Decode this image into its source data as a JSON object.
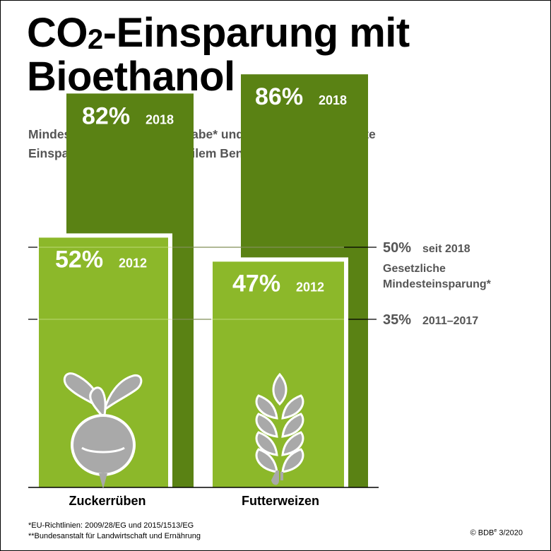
{
  "title_line1_a": "CO",
  "title_line1_sub": "2",
  "title_line1_b": "-Einsparung mit",
  "title_line2": "Bioethanol",
  "subtitle_line1": "Mindestwerte nach EU-Vorgabe* und amtlich** festgestellte",
  "subtitle_line2": "Einsparung gegenüber fossilem Benzin",
  "colors": {
    "dark_green": "#5a8214",
    "light_green": "#8cb82a",
    "icon_grey": "#a9a9a9"
  },
  "chart_data": {
    "type": "bar",
    "categories": [
      "Zuckerrüben",
      "Futterweizen"
    ],
    "series": [
      {
        "values": [
          82,
          86
        ],
        "labels": [
          "82%",
          "86%"
        ],
        "year": "2018"
      },
      {
        "values": [
          52,
          47
        ],
        "labels": [
          "52%",
          "47%"
        ],
        "year": "2012"
      }
    ],
    "ylim": [
      0,
      100
    ],
    "thresholds": [
      {
        "value": 50,
        "label": "50%",
        "note": "seit 2018"
      },
      {
        "value": 35,
        "label": "35%",
        "note": "2011–2017"
      }
    ],
    "threshold_caption_line1": "Gesetzliche",
    "threshold_caption_line2": "Mindesteinsparung*",
    "icons": [
      "sugar-beet-icon",
      "wheat-icon"
    ]
  },
  "footnote1": "*EU-Richtlinien: 2009/28/EG und 2015/1513/EG",
  "footnote2": "**Bundesanstalt für Landwirtschaft und Ernährung",
  "copyright": "© BDB",
  "copyright_sup": "e",
  "copyright_date": " 3/2020"
}
